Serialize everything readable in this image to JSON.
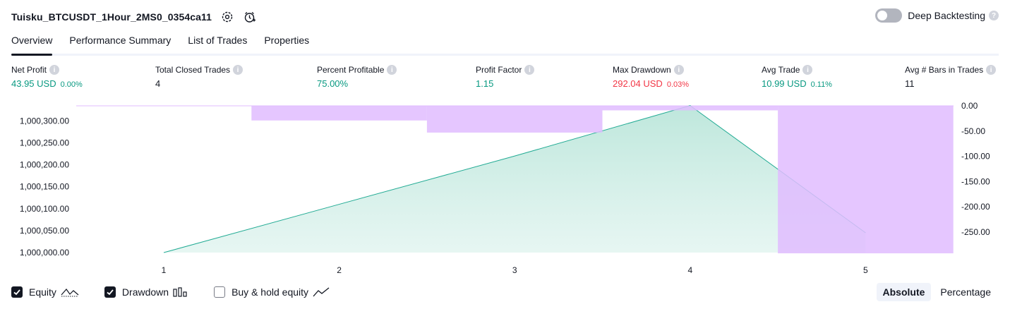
{
  "header": {
    "title": "Tuisku_BTCUSDT_1Hour_2MS0_0354ca11",
    "deep_backtesting_label": "Deep Backtesting",
    "help": "?"
  },
  "tabs": [
    {
      "label": "Overview",
      "active": true
    },
    {
      "label": "Performance Summary",
      "active": false
    },
    {
      "label": "List of Trades",
      "active": false
    },
    {
      "label": "Properties",
      "active": false
    }
  ],
  "metrics": [
    {
      "label": "Net Profit",
      "value": "43.95 USD",
      "pct": "0.00%",
      "tone": "pos"
    },
    {
      "label": "Total Closed Trades",
      "value": "4",
      "pct": "",
      "tone": "plain"
    },
    {
      "label": "Percent Profitable",
      "value": "75.00%",
      "pct": "",
      "tone": "pos"
    },
    {
      "label": "Profit Factor",
      "value": "1.15",
      "pct": "",
      "tone": "pos"
    },
    {
      "label": "Max Drawdown",
      "value": "292.04 USD",
      "pct": "0.03%",
      "tone": "neg"
    },
    {
      "label": "Avg Trade",
      "value": "10.99 USD",
      "pct": "0.11%",
      "tone": "pos"
    },
    {
      "label": "Avg # Bars in Trades",
      "value": "11",
      "pct": "",
      "tone": "plain"
    }
  ],
  "chart_data": {
    "type": "area",
    "x": [
      1,
      2,
      3,
      4,
      5
    ],
    "series": [
      {
        "name": "Equity",
        "values": [
          1000000.0,
          1000110.0,
          1000220.0,
          1000335.0,
          1000045.0
        ],
        "color": "#22ab94"
      },
      {
        "name": "Drawdown",
        "values": [
          0,
          -29,
          -53,
          -9,
          -292
        ],
        "color": "#e1bcff"
      }
    ],
    "equity_axis": {
      "ticks": [
        "1,000,300.00",
        "1,000,250.00",
        "1,000,200.00",
        "1,000,150.00",
        "1,000,100.00",
        "1,000,050.00",
        "1,000,000.00"
      ],
      "range": [
        1000000,
        1000335
      ]
    },
    "drawdown_axis": {
      "ticks": [
        "0.00",
        "-50.00",
        "-100.00",
        "-150.00",
        "-200.00",
        "-250.00"
      ],
      "range": [
        -292,
        0
      ]
    },
    "x_ticks": [
      "1",
      "2",
      "3",
      "4",
      "5"
    ]
  },
  "legend": [
    {
      "label": "Equity",
      "checked": true,
      "icon": "equity-line-icon"
    },
    {
      "label": "Drawdown",
      "checked": true,
      "icon": "drawdown-bars-icon"
    },
    {
      "label": "Buy & hold equity",
      "checked": false,
      "icon": "buy-hold-line-icon"
    }
  ],
  "modes": [
    {
      "label": "Absolute",
      "active": true
    },
    {
      "label": "Percentage",
      "active": false
    }
  ]
}
